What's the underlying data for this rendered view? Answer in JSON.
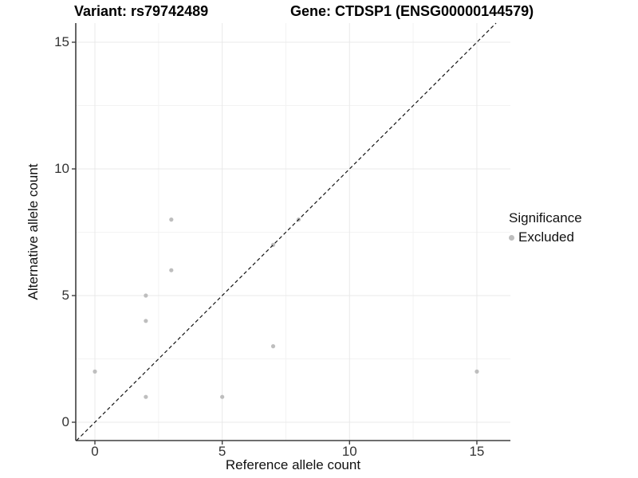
{
  "chart_data": {
    "type": "scatter",
    "titles": {
      "variant": "Variant: rs79742489",
      "gene": "Gene: CTDSP1 (ENSG00000144579)"
    },
    "xlabel": "Reference allele count",
    "ylabel": "Alternative allele count",
    "x_ticks": [
      0,
      5,
      10,
      15
    ],
    "y_ticks": [
      0,
      5,
      10,
      15
    ],
    "xlim": [
      -0.75,
      15.75
    ],
    "ylim": [
      -0.75,
      15.75
    ],
    "grid": "major+minor",
    "points": [
      [
        0,
        2
      ],
      [
        2,
        1
      ],
      [
        2,
        4
      ],
      [
        2,
        5
      ],
      [
        3,
        6
      ],
      [
        3,
        8
      ],
      [
        5,
        1
      ],
      [
        7,
        3
      ],
      [
        7,
        7
      ],
      [
        8,
        8
      ],
      [
        15,
        2
      ]
    ],
    "point_color": "#bebebe",
    "reference_line": {
      "slope": 1,
      "intercept": 0,
      "style": "dashed",
      "color": "#141414"
    },
    "legend": {
      "title": "Significance",
      "position": "right",
      "items": [
        {
          "label": "Excluded",
          "color": "#bebebe"
        }
      ]
    },
    "colors": {
      "grid_major": "#e9e9e9",
      "grid_minor": "#f3f3f3",
      "axis_line": "#3f3f3f",
      "tick_text": "#333333"
    }
  }
}
